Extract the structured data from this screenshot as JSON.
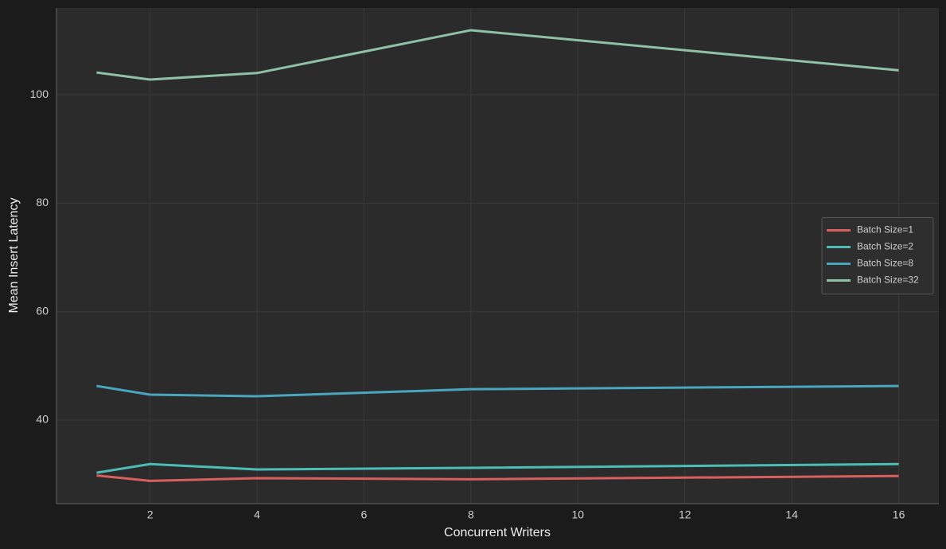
{
  "chart_data": {
    "type": "line",
    "x_label": "Concurrent Writers",
    "y_label": "Mean Insert Latency",
    "x": [
      1,
      2,
      4,
      8,
      16
    ],
    "series": [
      {
        "name": "Batch Size=1",
        "color": "#d95f5f",
        "values": [
          29.8,
          28.8,
          29.3,
          29.1,
          29.7
        ]
      },
      {
        "name": "Batch Size=2",
        "color": "#4bbdb6",
        "values": [
          30.3,
          31.9,
          30.9,
          31.2,
          31.9
        ]
      },
      {
        "name": "Batch Size=8",
        "color": "#48a6be",
        "values": [
          46.3,
          44.7,
          44.4,
          45.7,
          46.3
        ]
      },
      {
        "name": "Batch Size=32",
        "color": "#8fc1a6",
        "values": [
          104.1,
          102.8,
          104.0,
          111.9,
          104.5
        ]
      }
    ],
    "xlim": [
      0.25,
      16.75
    ],
    "ylim": [
      24.6,
      116
    ],
    "xticks": [
      2,
      4,
      6,
      8,
      10,
      12,
      14,
      16
    ],
    "yticks": [
      40,
      60,
      80,
      100
    ],
    "grid": true,
    "legend": "right"
  }
}
